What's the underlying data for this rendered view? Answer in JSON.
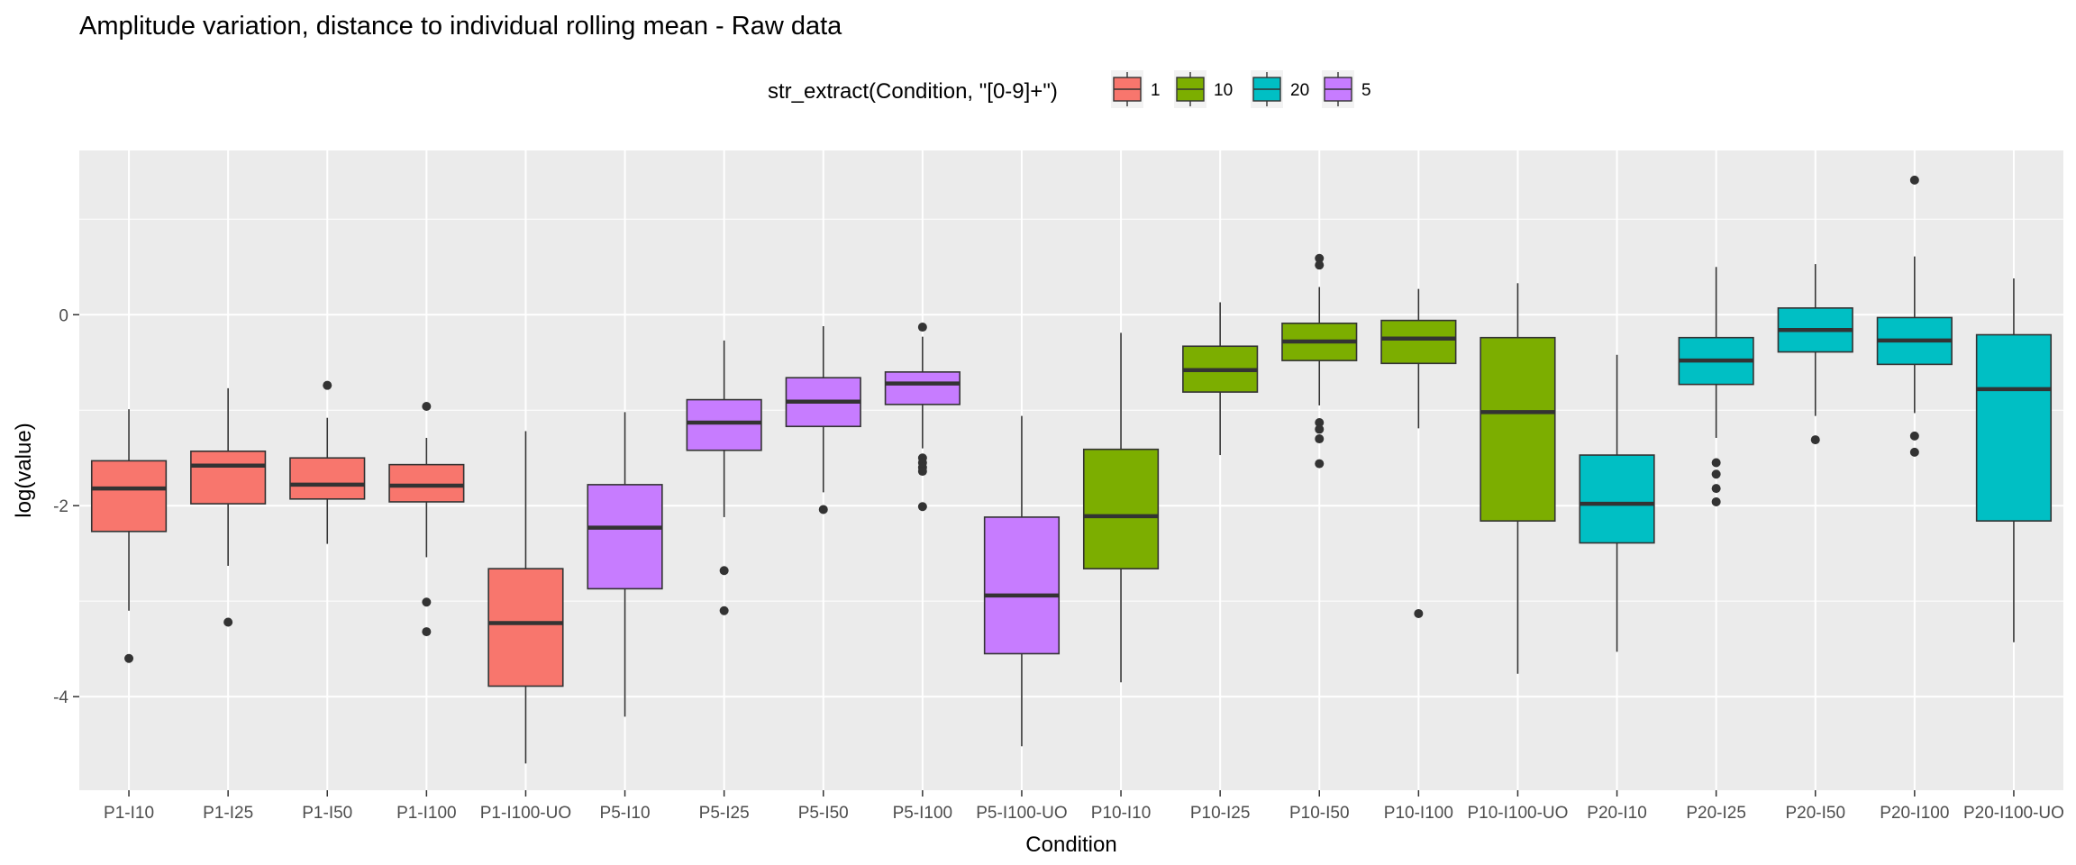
{
  "chart_data": {
    "type": "boxplot",
    "title": "Amplitude variation, distance to individual rolling mean - Raw data",
    "xlabel": "Condition",
    "ylabel": "log(value)",
    "ylim": [
      -4.98,
      1.72
    ],
    "yticks": [
      -4,
      -2,
      0
    ],
    "grid": true,
    "legend": {
      "title": "str_extract(Condition, \"[0-9]+\")",
      "position": "top",
      "entries": [
        {
          "label": "1",
          "color": "#F8766D"
        },
        {
          "label": "10",
          "color": "#7CAE00"
        },
        {
          "label": "20",
          "color": "#00BFC4"
        },
        {
          "label": "5",
          "color": "#C77CFF"
        }
      ]
    },
    "boxes": [
      {
        "condition": "P1-I10",
        "group": "1",
        "lower": -3.1,
        "q1": -2.27,
        "median": -1.82,
        "q3": -1.53,
        "upper": -0.99,
        "outliers": [
          -3.6
        ]
      },
      {
        "condition": "P1-I25",
        "group": "1",
        "lower": -2.63,
        "q1": -1.98,
        "median": -1.58,
        "q3": -1.43,
        "upper": -0.77,
        "outliers": [
          -3.22
        ]
      },
      {
        "condition": "P1-I50",
        "group": "1",
        "lower": -2.4,
        "q1": -1.93,
        "median": -1.78,
        "q3": -1.5,
        "upper": -1.08,
        "outliers": [
          -0.74
        ]
      },
      {
        "condition": "P1-I100",
        "group": "1",
        "lower": -2.54,
        "q1": -1.96,
        "median": -1.79,
        "q3": -1.57,
        "upper": -1.29,
        "outliers": [
          -0.96,
          -3.01,
          -3.32
        ]
      },
      {
        "condition": "P1-I100-UO",
        "group": "1",
        "lower": -4.7,
        "q1": -3.89,
        "median": -3.23,
        "q3": -2.66,
        "upper": -1.22,
        "outliers": []
      },
      {
        "condition": "P5-I10",
        "group": "5",
        "lower": -4.21,
        "q1": -2.87,
        "median": -2.23,
        "q3": -1.78,
        "upper": -1.02,
        "outliers": []
      },
      {
        "condition": "P5-I25",
        "group": "5",
        "lower": -2.12,
        "q1": -1.42,
        "median": -1.13,
        "q3": -0.89,
        "upper": -0.27,
        "outliers": [
          -2.68,
          -3.1
        ]
      },
      {
        "condition": "P5-I50",
        "group": "5",
        "lower": -1.86,
        "q1": -1.17,
        "median": -0.91,
        "q3": -0.66,
        "upper": -0.12,
        "outliers": [
          -2.04
        ]
      },
      {
        "condition": "P5-I100",
        "group": "5",
        "lower": -1.4,
        "q1": -0.94,
        "median": -0.72,
        "q3": -0.6,
        "upper": -0.23,
        "outliers": [
          -0.13,
          -1.5,
          -1.55,
          -1.6,
          -1.64,
          -2.01
        ]
      },
      {
        "condition": "P5-I100-UO",
        "group": "5",
        "lower": -4.52,
        "q1": -3.55,
        "median": -2.94,
        "q3": -2.12,
        "upper": -1.06,
        "outliers": []
      },
      {
        "condition": "P10-I10",
        "group": "10",
        "lower": -3.85,
        "q1": -2.66,
        "median": -2.11,
        "q3": -1.41,
        "upper": -0.19,
        "outliers": []
      },
      {
        "condition": "P10-I25",
        "group": "10",
        "lower": -1.47,
        "q1": -0.81,
        "median": -0.58,
        "q3": -0.33,
        "upper": 0.13,
        "outliers": []
      },
      {
        "condition": "P10-I50",
        "group": "10",
        "lower": -0.95,
        "q1": -0.48,
        "median": -0.28,
        "q3": -0.09,
        "upper": 0.29,
        "outliers": [
          0.59,
          0.52,
          -1.13,
          -1.2,
          -1.3,
          -1.56
        ]
      },
      {
        "condition": "P10-I100",
        "group": "10",
        "lower": -1.19,
        "q1": -0.51,
        "median": -0.25,
        "q3": -0.06,
        "upper": 0.27,
        "outliers": [
          -3.13
        ]
      },
      {
        "condition": "P10-I100-UO",
        "group": "10",
        "lower": -3.76,
        "q1": -2.16,
        "median": -1.02,
        "q3": -0.24,
        "upper": 0.33,
        "outliers": []
      },
      {
        "condition": "P20-I10",
        "group": "20",
        "lower": -3.53,
        "q1": -2.39,
        "median": -1.98,
        "q3": -1.47,
        "upper": -0.42,
        "outliers": []
      },
      {
        "condition": "P20-I25",
        "group": "20",
        "lower": -1.29,
        "q1": -0.73,
        "median": -0.48,
        "q3": -0.24,
        "upper": 0.5,
        "outliers": [
          -1.55,
          -1.67,
          -1.82,
          -1.96
        ]
      },
      {
        "condition": "P20-I50",
        "group": "20",
        "lower": -1.06,
        "q1": -0.39,
        "median": -0.16,
        "q3": 0.07,
        "upper": 0.53,
        "outliers": [
          -1.31
        ]
      },
      {
        "condition": "P20-I100",
        "group": "20",
        "lower": -1.03,
        "q1": -0.52,
        "median": -0.27,
        "q3": -0.03,
        "upper": 0.61,
        "outliers": [
          1.41,
          -1.27,
          -1.44
        ]
      },
      {
        "condition": "P20-I100-UO",
        "group": "20",
        "lower": -3.43,
        "q1": -2.16,
        "median": -0.78,
        "q3": -0.21,
        "upper": 0.38,
        "outliers": []
      }
    ]
  }
}
